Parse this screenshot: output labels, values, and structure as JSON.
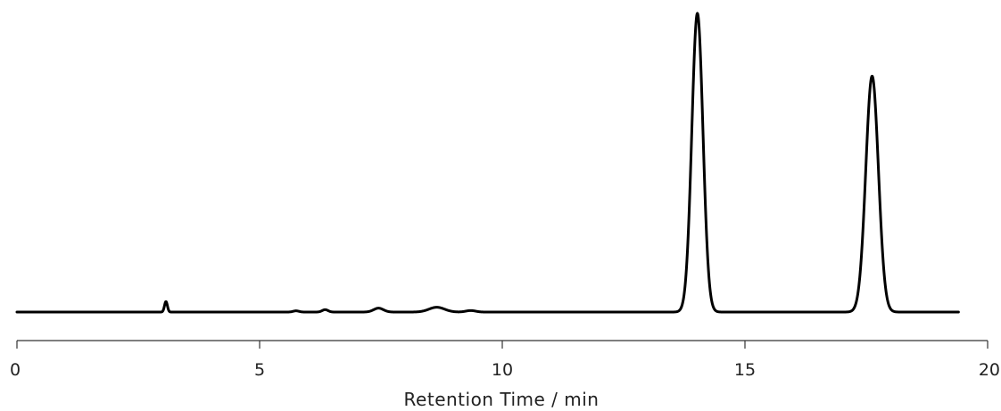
{
  "chart_data": {
    "type": "line",
    "title": "",
    "xlabel": "Retention Time / min",
    "ylabel": "",
    "xlim": [
      0,
      20
    ],
    "x_ticks": [
      0,
      5,
      10,
      15,
      20
    ],
    "x_tick_labels": [
      "0",
      "5",
      "10",
      "15",
      "20"
    ],
    "y_axis_visible": false,
    "y_range_relative": [
      0,
      1.05
    ],
    "grid": false,
    "line_color": "#000000",
    "baseline_end_x": 19.4,
    "peaks": [
      {
        "rt": 3.07,
        "height": 0.035,
        "sigma": 0.03
      },
      {
        "rt": 5.75,
        "height": 0.004,
        "sigma": 0.06
      },
      {
        "rt": 6.35,
        "height": 0.008,
        "sigma": 0.06
      },
      {
        "rt": 7.45,
        "height": 0.013,
        "sigma": 0.1
      },
      {
        "rt": 8.65,
        "height": 0.016,
        "sigma": 0.16
      },
      {
        "rt": 9.35,
        "height": 0.005,
        "sigma": 0.1
      },
      {
        "rt": 14.02,
        "height": 1.0,
        "sigma": 0.115
      },
      {
        "rt": 17.62,
        "height": 0.79,
        "sigma": 0.13
      }
    ]
  }
}
